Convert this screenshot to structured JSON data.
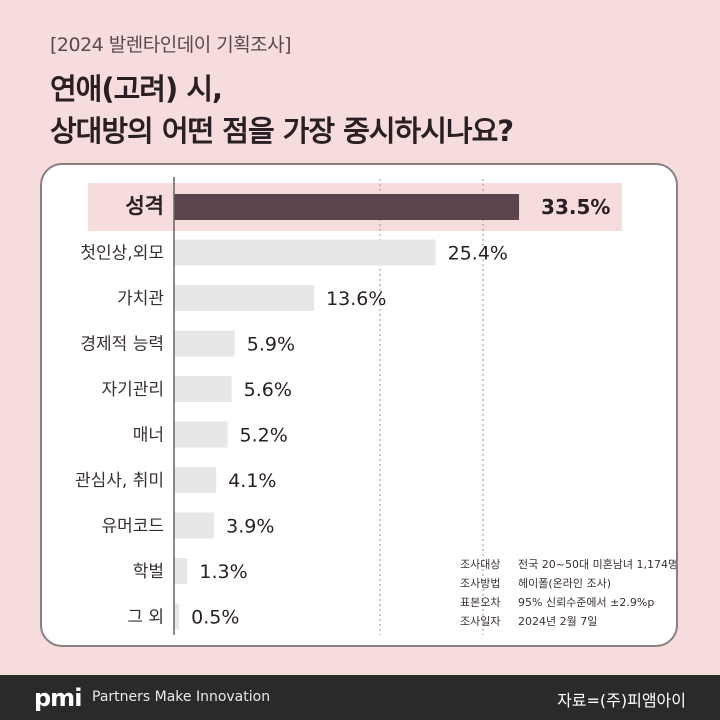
{
  "header": {
    "tag": "[2024 발렌타인데이 기획조사]",
    "title_line1": "연애(고려) 시,",
    "title_line2": "상대방의 어떤 점을 가장 중시하시나요?"
  },
  "chart_data": {
    "type": "bar",
    "orientation": "horizontal",
    "title": "",
    "xlabel": "",
    "ylabel": "",
    "categories": [
      "성격",
      "첫인상,외모",
      "가치관",
      "경제적 능력",
      "자기관리",
      "매너",
      "관심사, 취미",
      "유머코드",
      "학벌",
      "그 외"
    ],
    "values": [
      33.5,
      25.4,
      13.6,
      5.9,
      5.6,
      5.2,
      4.1,
      3.9,
      1.3,
      0.5
    ],
    "value_labels": [
      "33.5%",
      "25.4%",
      "13.6%",
      "5.9%",
      "5.6%",
      "5.2%",
      "4.1%",
      "3.9%",
      "1.3%",
      "0.5%"
    ],
    "highlight_index": 0,
    "grid": true,
    "colors": {
      "highlight_bar": "#5b444c",
      "bar": "#e9e6e7",
      "highlight_band": "#f6dcdc",
      "grid": "#9a9396"
    }
  },
  "survey_info": [
    {
      "key": "조사대상",
      "value": "전국 20~50대 미혼남녀 1,174명"
    },
    {
      "key": "조사방법",
      "value": "헤이폴(온라인 조사)"
    },
    {
      "key": "표본오차",
      "value": "95% 신뢰수준에서 ±2.9%p"
    },
    {
      "key": "조사일자",
      "value": "2024년 2월 7일"
    }
  ],
  "footer": {
    "logo": "pmi",
    "tagline": "Partners Make Innovation",
    "source": "자료=(주)피앰아이"
  },
  "colors": {
    "background": "#f6dcdc",
    "footer": "#2a2a2a"
  }
}
